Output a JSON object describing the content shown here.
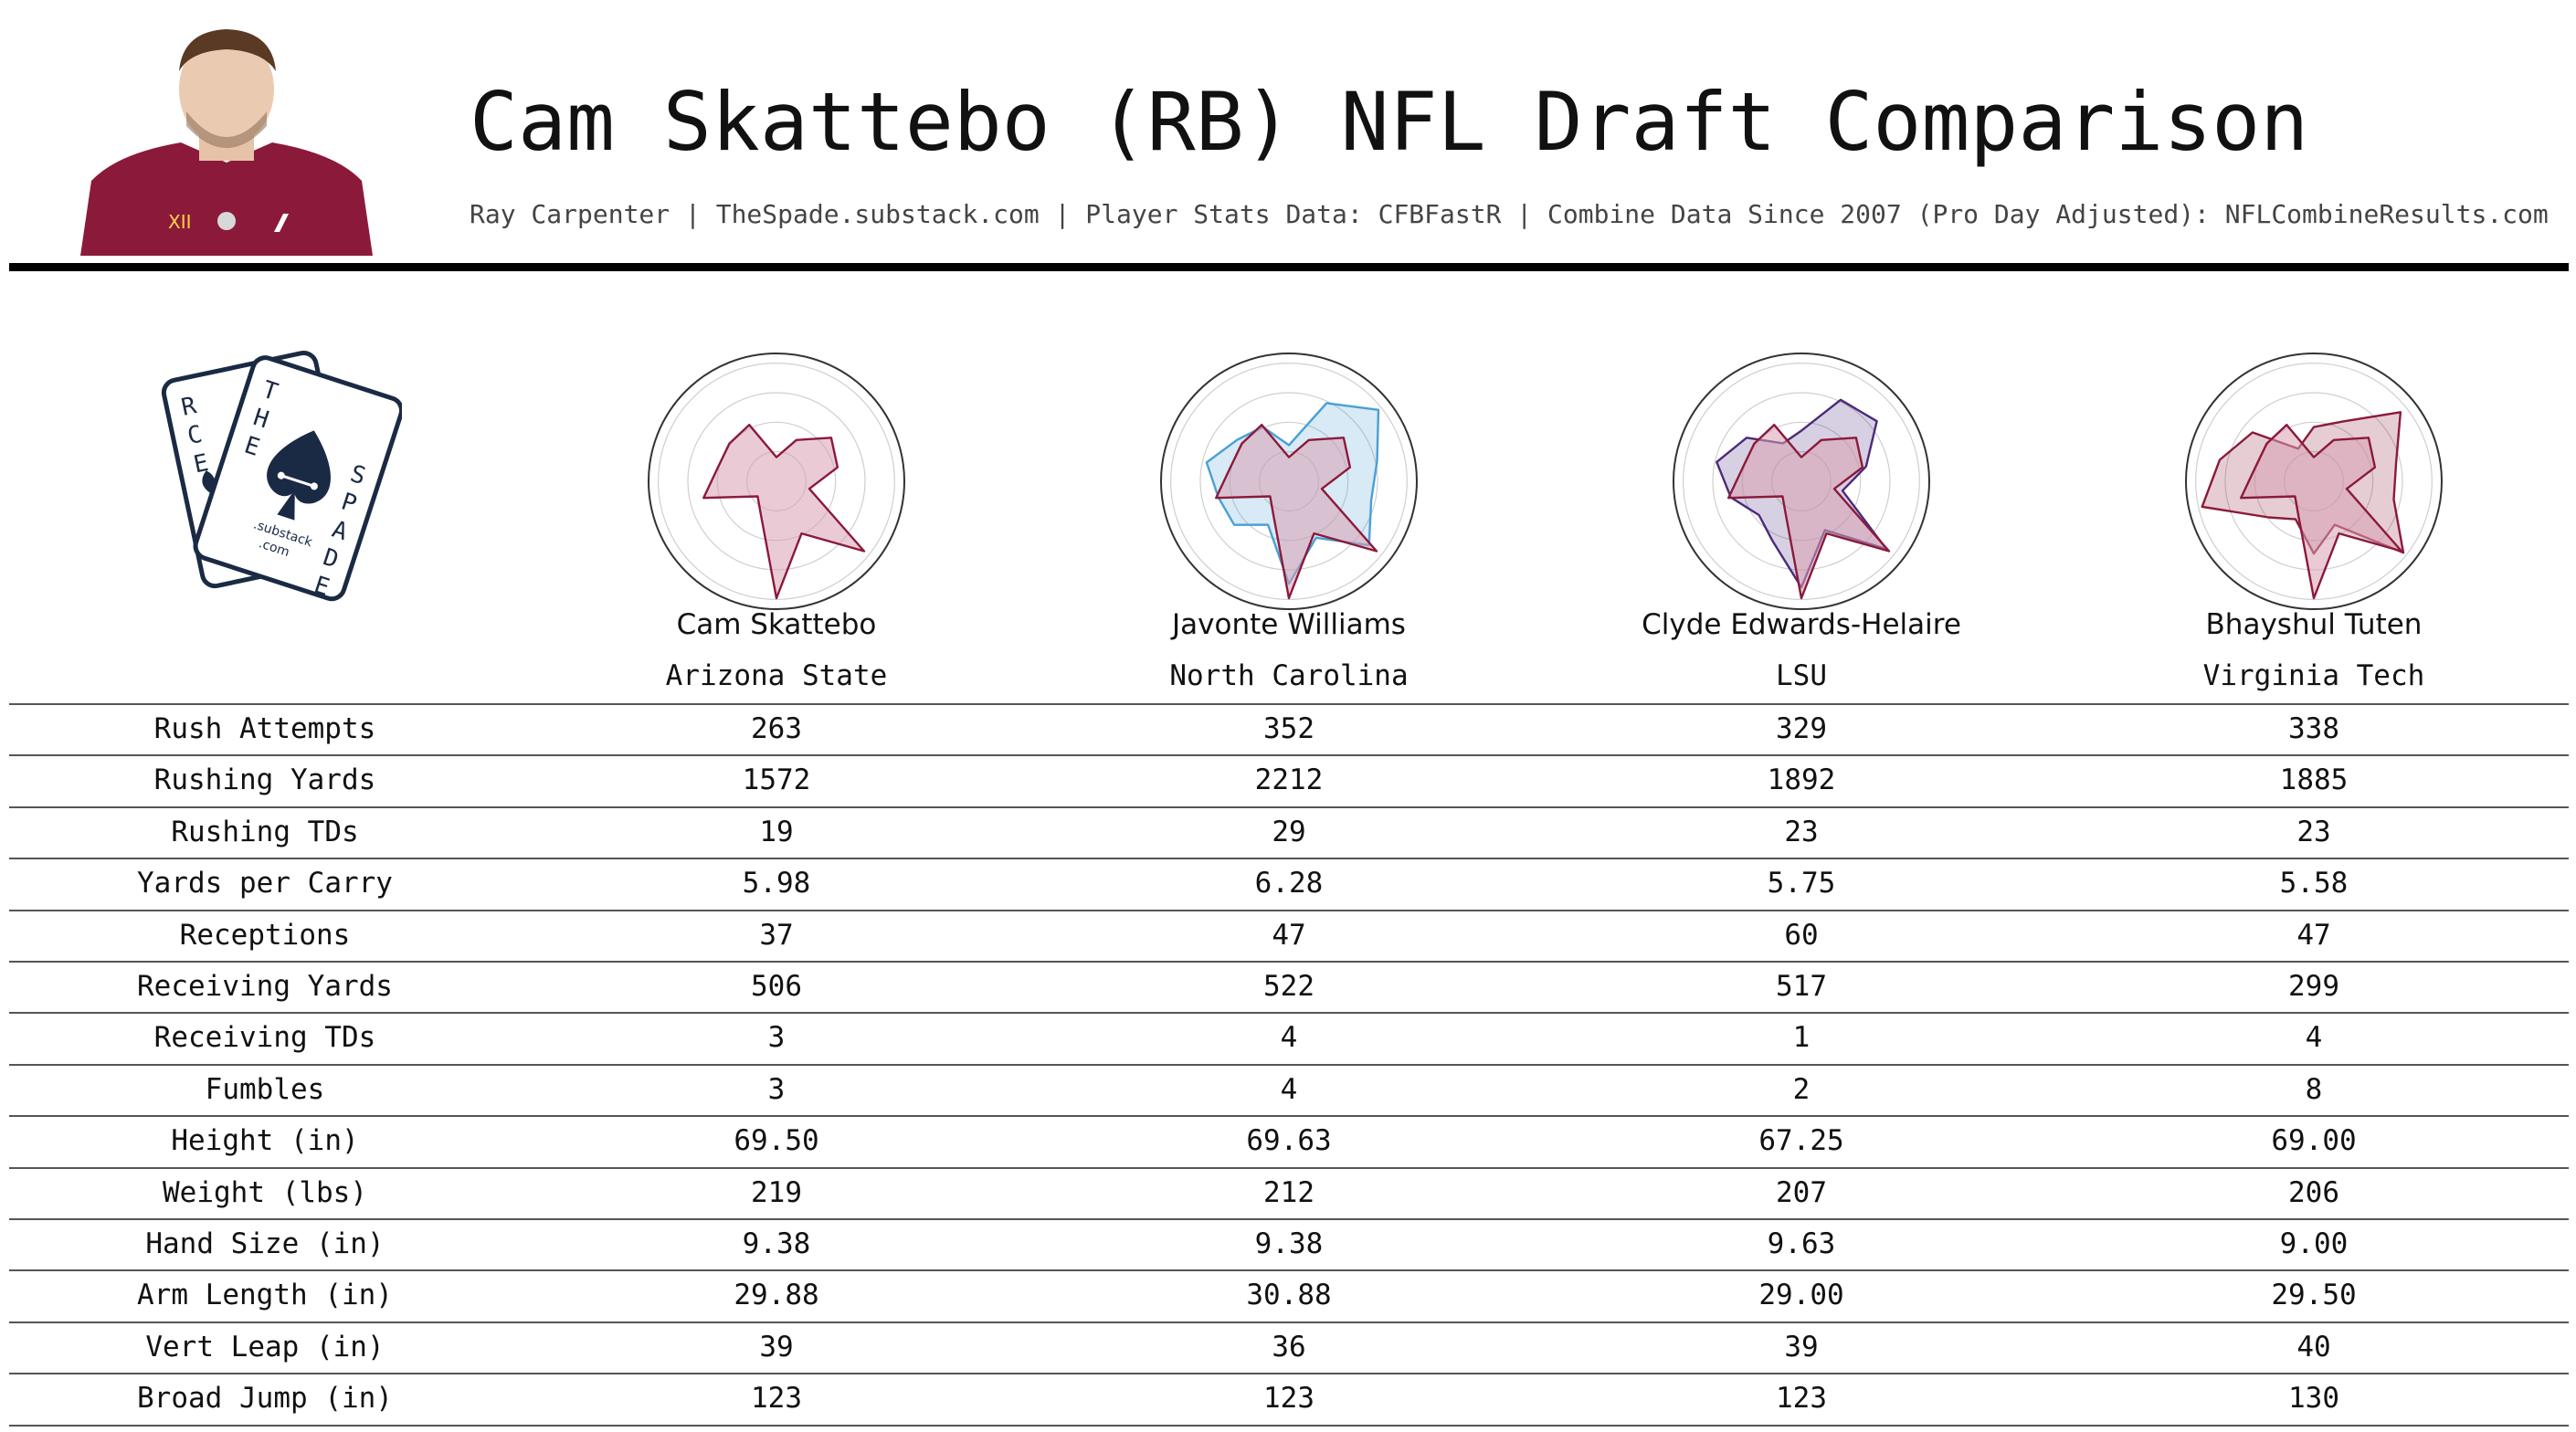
{
  "header": {
    "title": "Cam Skattebo (RB) NFL Draft Comparison",
    "subtitle": "Ray Carpenter | TheSpade.substack.com | Player Stats Data: CFBFastR | Combine Data Since 2007 (Pro Day Adjusted): NFLCombineResults.com"
  },
  "logo": {
    "card_back_letters": [
      "R",
      "C",
      "E"
    ],
    "card_front_letters_left": [
      "T",
      "H",
      "E"
    ],
    "card_front_letters_right": [
      "S",
      "P",
      "A",
      "D",
      "E"
    ],
    "substack_text": ".substack",
    "com_text": ".com"
  },
  "colors": {
    "primary_series": "#8b1a3a",
    "primary_fill": "#d9a0b2",
    "comp_javonte": "#4a9fd6",
    "comp_clyde": "#4b2a7a",
    "comp_bhayshul": "#8b1a3a",
    "brand_navy": "#1b2a44"
  },
  "players": [
    {
      "name": "Cam Skattebo",
      "school": "Arizona State"
    },
    {
      "name": "Javonte Williams",
      "school": "North Carolina"
    },
    {
      "name": "Clyde Edwards-Helaire",
      "school": "LSU"
    },
    {
      "name": "Bhayshul Tuten",
      "school": "Virginia Tech"
    }
  ],
  "chart_data": {
    "type": "table",
    "row_labels": [
      "Rush Attempts",
      "Rushing Yards",
      "Rushing TDs",
      "Yards per Carry",
      "Receptions",
      "Receiving Yards",
      "Receiving TDs",
      "Fumbles",
      "Height (in)",
      "Weight (lbs)",
      "Hand Size (in)",
      "Arm Length (in)",
      "Vert Leap (in)",
      "Broad Jump (in)"
    ],
    "columns": [
      {
        "player": "Cam Skattebo",
        "values": [
          "263",
          "1572",
          "19",
          "5.98",
          "37",
          "506",
          "3",
          "3",
          "69.50",
          "219",
          "9.38",
          "29.88",
          "39",
          "123"
        ]
      },
      {
        "player": "Javonte Williams",
        "values": [
          "352",
          "2212",
          "29",
          "6.28",
          "47",
          "522",
          "4",
          "4",
          "69.63",
          "212",
          "9.38",
          "30.88",
          "36",
          "123"
        ]
      },
      {
        "player": "Clyde Edwards-Helaire",
        "values": [
          "329",
          "1892",
          "23",
          "5.75",
          "60",
          "517",
          "1",
          "2",
          "67.25",
          "207",
          "9.63",
          "29.00",
          "39",
          "123"
        ]
      },
      {
        "player": "Bhayshul Tuten",
        "values": [
          "338",
          "1885",
          "23",
          "5.58",
          "47",
          "299",
          "4",
          "8",
          "69.00",
          "206",
          "9.00",
          "29.50",
          "40",
          "130"
        ]
      }
    ],
    "radar": {
      "type": "radar",
      "axes": 14,
      "range": [
        0,
        1
      ],
      "grid_rings": 4,
      "profiles": [
        {
          "player": "Cam Skattebo",
          "values": [
            0.2,
            0.38,
            0.58,
            0.52,
            0.28,
            0.93,
            0.48,
            0.97,
            0.3,
            0.2,
            0.62,
            0.5,
            0.5,
            0.52
          ]
        },
        {
          "player": "Javonte Williams",
          "values": [
            0.3,
            0.72,
            0.95,
            0.75,
            0.7,
            0.85,
            0.52,
            0.85,
            0.4,
            0.58,
            0.6,
            0.7,
            0.55,
            0.5
          ]
        },
        {
          "player": "Clyde Edwards-Helaire",
          "values": [
            0.42,
            0.75,
            0.8,
            0.55,
            0.35,
            0.9,
            0.45,
            0.88,
            0.55,
            0.45,
            0.6,
            0.72,
            0.58,
            0.35
          ]
        },
        {
          "player": "Bhayshul Tuten",
          "values": [
            0.45,
            0.55,
            0.92,
            0.7,
            0.68,
            0.95,
            0.4,
            0.6,
            0.35,
            0.48,
            0.95,
            0.8,
            0.65,
            0.3
          ]
        }
      ]
    }
  }
}
